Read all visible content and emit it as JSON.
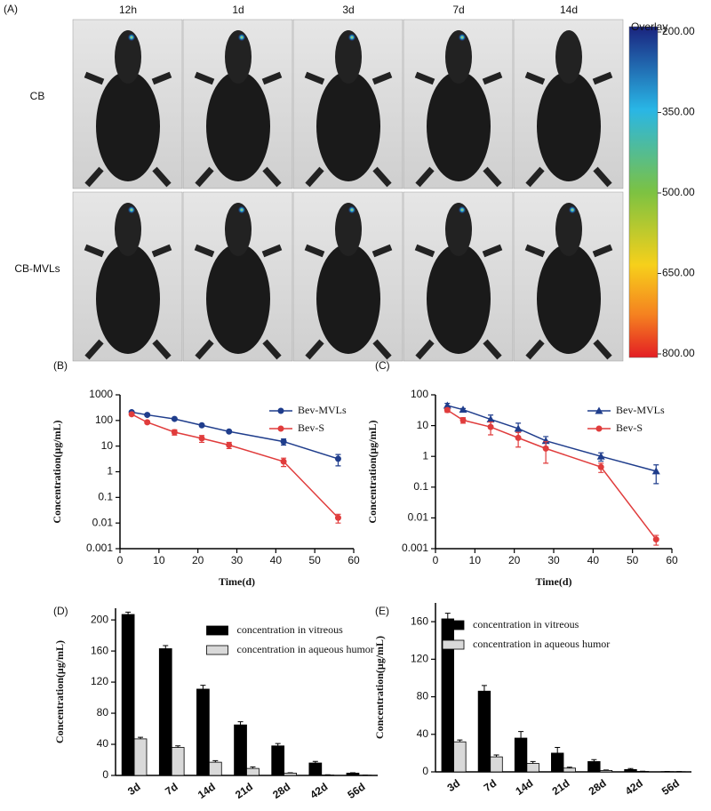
{
  "panel_a": {
    "label": "(A)",
    "columns": [
      "12h",
      "1d",
      "3d",
      "7d",
      "14d"
    ],
    "rows": [
      "CB",
      "CB-MVLs"
    ],
    "colorbar": {
      "title": "Overlay",
      "lim": [
        200,
        800
      ],
      "ticks": [
        {
          "value": 200,
          "label": "200.00"
        },
        {
          "value": 350,
          "label": "350.00"
        },
        {
          "value": 500,
          "label": "500.00"
        },
        {
          "value": 650,
          "label": "650.00"
        },
        {
          "value": 800,
          "label": "800.00"
        }
      ]
    }
  },
  "chart_data": [
    {
      "type": "line",
      "label": "(B)",
      "x_label": "Time(d)",
      "y_label": "Concentration(μg/mL)",
      "log_y": true,
      "legend": "upper right",
      "x": [
        3,
        7,
        14,
        21,
        28,
        42,
        56
      ],
      "xlim": [
        0,
        60
      ],
      "xticks": [
        0,
        10,
        20,
        30,
        40,
        50,
        60
      ],
      "ylim": [
        0.001,
        1000
      ],
      "yticks": [
        0.001,
        0.01,
        0.1,
        1,
        10,
        100,
        1000
      ],
      "series": [
        {
          "name": "Bev-MVLs",
          "color": "#1f3d8c",
          "marker": "circle",
          "values": [
            210,
            165,
            115,
            65,
            37,
            15,
            3.2
          ],
          "errors": [
            20,
            10,
            8,
            5,
            3,
            4,
            1.5
          ]
        },
        {
          "name": "Bev-S",
          "color": "#e03c3c",
          "marker": "circle",
          "values": [
            175,
            85,
            35,
            20,
            11,
            2.5,
            0.016
          ],
          "errors": [
            15,
            10,
            8,
            6,
            3,
            0.9,
            0.006
          ]
        }
      ]
    },
    {
      "type": "line",
      "label": "(C)",
      "x_label": "Time(d)",
      "y_label": "Concentration(μg/mL)",
      "log_y": true,
      "legend": "upper right",
      "x": [
        3,
        7,
        14,
        21,
        28,
        42,
        56
      ],
      "xlim": [
        0,
        60
      ],
      "xticks": [
        0,
        10,
        20,
        30,
        40,
        50,
        60
      ],
      "ylim": [
        0.001,
        100
      ],
      "yticks": [
        0.001,
        0.01,
        0.1,
        1,
        10,
        100
      ],
      "series": [
        {
          "name": "Bev-MVLs",
          "color": "#1f3d8c",
          "marker": "triangle",
          "values": [
            45,
            33,
            16,
            8,
            3.2,
            1.0,
            0.33
          ],
          "errors": [
            8,
            3,
            6,
            4,
            1.2,
            0.3,
            0.2
          ]
        },
        {
          "name": "Bev-S",
          "color": "#e03c3c",
          "marker": "circle",
          "values": [
            32,
            15,
            9,
            4,
            1.8,
            0.45,
            0.002
          ],
          "errors": [
            5,
            3,
            4,
            2,
            1.2,
            0.15,
            0.0007
          ]
        }
      ]
    },
    {
      "type": "bar",
      "label": "(D)",
      "y_label": "Concentration(μg/mL)",
      "legend": "upper center",
      "categories": [
        "3d",
        "7d",
        "14d",
        "21d",
        "28d",
        "42d",
        "56d"
      ],
      "ylim": [
        0,
        215
      ],
      "yticks": [
        0,
        40,
        80,
        120,
        160,
        200
      ],
      "series": [
        {
          "name": "concentration in vitreous",
          "color": "#000000",
          "values": [
            207,
            163,
            111,
            65,
            38,
            16,
            3
          ],
          "errors": [
            3,
            4,
            5,
            4,
            3,
            2,
            0.5
          ]
        },
        {
          "name": "concentration in aqueous humor",
          "color": "#d9d9d9",
          "values": [
            47,
            36,
            17,
            9,
            3,
            0.5,
            0.3
          ],
          "errors": [
            2,
            2,
            2,
            2,
            0.5,
            0.3,
            0.2
          ]
        }
      ]
    },
    {
      "type": "bar",
      "label": "(E)",
      "y_label": "Concentration(μg/mL)",
      "legend": "upper left",
      "categories": [
        "3d",
        "7d",
        "14d",
        "21d",
        "28d",
        "42d",
        "56d"
      ],
      "ylim": [
        0,
        180
      ],
      "yticks": [
        0,
        40,
        80,
        120,
        160
      ],
      "series": [
        {
          "name": "concentration in vitreous",
          "color": "#000000",
          "values": [
            163,
            86,
            36,
            20,
            11,
            2.5,
            0.3
          ],
          "errors": [
            6,
            6,
            7,
            6,
            2,
            1,
            0.2
          ]
        },
        {
          "name": "concentration in aqueous humor",
          "color": "#d9d9d9",
          "values": [
            32,
            16,
            9,
            4,
            1.5,
            0.5,
            0.2
          ],
          "errors": [
            2,
            2,
            2,
            1,
            0.5,
            0.2,
            0.1
          ]
        }
      ]
    }
  ]
}
